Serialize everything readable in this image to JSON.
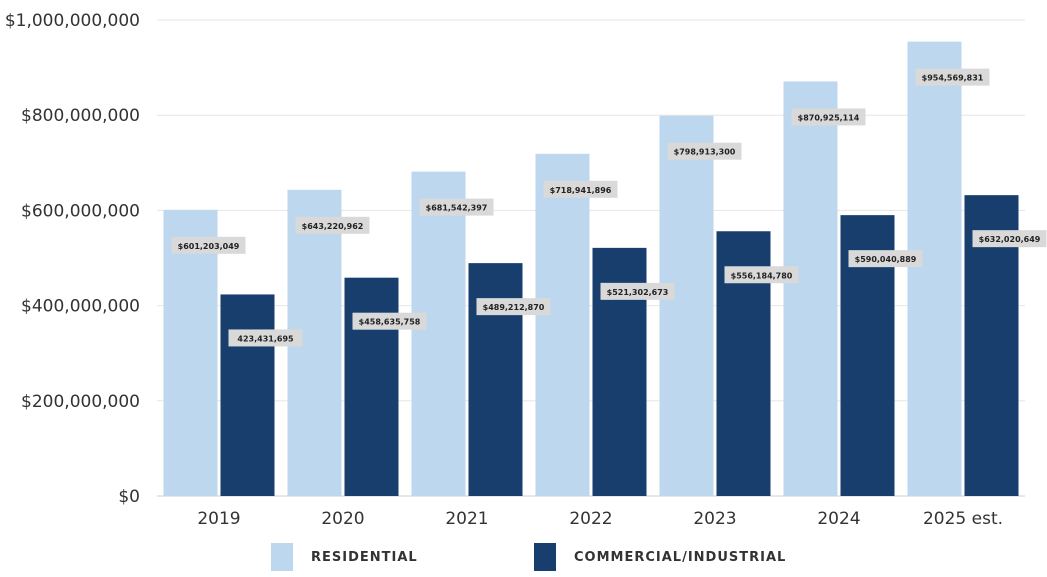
{
  "chart_data": {
    "type": "bar",
    "categories": [
      "2019",
      "2020",
      "2021",
      "2022",
      "2023",
      "2024",
      "2025 est."
    ],
    "series": [
      {
        "name": "RESIDENTIAL",
        "color": "#bdd7ee",
        "values": [
          601203049,
          643220962,
          681542397,
          718941896,
          798913300,
          870925114,
          954569831
        ],
        "labels": [
          "$601,203,049",
          "$643,220,962",
          "$681,542,397",
          "$718,941,896",
          "$798,913,300",
          "$870,925,114",
          "$954,569,831"
        ]
      },
      {
        "name": "COMMERCIAL/INDUSTRIAL",
        "color": "#173e6d",
        "values": [
          423431695,
          458635758,
          489212870,
          521302673,
          556184780,
          590040889,
          632020649
        ],
        "labels": [
          "423,431,695",
          "$458,635,758",
          "$489,212,870",
          "$521,302,673",
          "$556,184,780",
          "$590,040,889",
          "$632,020,649"
        ]
      }
    ],
    "ylim": [
      0,
      1000000000
    ],
    "yticks": [
      0,
      200000000,
      400000000,
      600000000,
      800000000,
      1000000000
    ],
    "ytick_labels": [
      "$0",
      "$200,000,000",
      "$400,000,000",
      "$600,000,000",
      "$800,000,000",
      "$1,000,000,000"
    ],
    "grid": true,
    "legend_position": "bottom",
    "label_bg_color": "#d9d9d9"
  },
  "legend": {
    "residential": "RESIDENTIAL",
    "commercial": "COMMERCIAL/INDUSTRIAL"
  }
}
